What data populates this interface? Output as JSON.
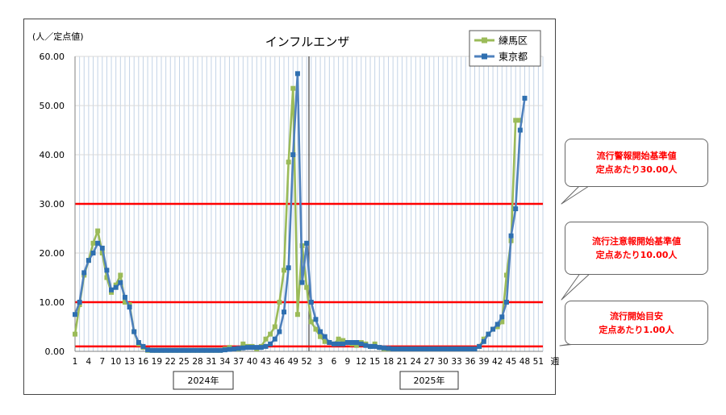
{
  "chart_data": {
    "type": "line",
    "title": "インフルエンザ",
    "ylabel": "(人／定点値)",
    "xlabel": "週",
    "ylim": [
      0,
      60
    ],
    "y_ticks": [
      "0.00",
      "10.00",
      "20.00",
      "30.00",
      "40.00",
      "50.00",
      "60.00"
    ],
    "x_tick_labels": [
      "1",
      "4",
      "7",
      "10",
      "13",
      "16",
      "19",
      "22",
      "25",
      "28",
      "31",
      "34",
      "37",
      "40",
      "43",
      "46",
      "49",
      "52",
      "3",
      "6",
      "9",
      "12",
      "15",
      "18",
      "21",
      "24",
      "27",
      "30",
      "33",
      "36",
      "39",
      "42",
      "45",
      "48",
      "51"
    ],
    "year_labels": [
      "2024年",
      "2025年"
    ],
    "legend_position": "top-right",
    "grid": true,
    "thresholds": [
      {
        "value": 30,
        "label_lines": [
          "流行警報開始基準値",
          "定点あたり30.00人"
        ]
      },
      {
        "value": 10,
        "label_lines": [
          "流行注意報開始基準値",
          "定点あたり10.00人"
        ]
      },
      {
        "value": 1,
        "label_lines": [
          "流行開始目安",
          "定点あたり1.00人"
        ]
      }
    ],
    "colors": {
      "nerima": "#9bbb59",
      "tokyo": "#4f81bd",
      "tokyo_marker": "#2e6fb0",
      "threshold": "#ff0000",
      "grid": "#c3d3e6",
      "separator": "#404040"
    },
    "series": [
      {
        "name": "練馬区",
        "values": [
          3.5,
          9.5,
          15.5,
          18.5,
          22,
          24.5,
          20,
          15,
          12,
          13.5,
          15.5,
          10,
          9.5,
          4,
          1.5,
          0.8,
          0.2,
          0.2,
          0.2,
          0.2,
          0.2,
          0.2,
          0.2,
          0.2,
          0.2,
          0.2,
          0.2,
          0.2,
          0.2,
          0.2,
          0.2,
          0.2,
          0.2,
          0.5,
          0.8,
          0.5,
          0.5,
          1.5,
          1.0,
          1.0,
          0.5,
          1.0,
          2.5,
          3.5,
          5,
          10,
          16.5,
          38.5,
          53.5,
          7.5,
          21.5,
          13,
          6,
          4.5,
          3,
          2,
          1.8,
          1.5,
          2.5,
          2.2,
          1.8,
          1.5,
          1.2,
          1.8,
          1.5,
          1.0,
          1.5,
          0.8,
          0.5,
          0.5,
          0.5,
          0.5,
          0.5,
          0.5,
          0.5,
          0.5,
          0.5,
          0.5,
          0.5,
          0.5,
          0.5,
          0.5,
          0.5,
          0.5,
          0.5,
          0.5,
          0.5,
          0.5,
          0.5,
          1.0,
          2.5,
          3.5,
          4.5,
          5,
          6,
          15.5,
          22.5,
          47,
          47
        ]
      },
      {
        "name": "東京都",
        "values": [
          7.5,
          10,
          16,
          18.5,
          20,
          22,
          21,
          16.5,
          12.5,
          13,
          14,
          11,
          9,
          4,
          1.8,
          1.0,
          0.3,
          0.2,
          0.2,
          0.2,
          0.2,
          0.2,
          0.2,
          0.2,
          0.2,
          0.2,
          0.2,
          0.2,
          0.2,
          0.2,
          0.2,
          0.2,
          0.2,
          0.3,
          0.4,
          0.5,
          0.6,
          0.7,
          0.8,
          0.8,
          0.8,
          0.8,
          1.0,
          1.5,
          2.5,
          4,
          8,
          17,
          40,
          56.5,
          14,
          22,
          10,
          6.5,
          4,
          3,
          1.8,
          1.5,
          1.5,
          1.5,
          1.8,
          1.8,
          1.8,
          1.5,
          1.2,
          1.0,
          1.0,
          0.8,
          0.7,
          0.6,
          0.5,
          0.5,
          0.5,
          0.5,
          0.5,
          0.5,
          0.5,
          0.5,
          0.5,
          0.5,
          0.5,
          0.5,
          0.5,
          0.5,
          0.5,
          0.5,
          0.5,
          0.5,
          0.5,
          1.0,
          2.0,
          3.5,
          4.5,
          5.5,
          7,
          10,
          23.5,
          29,
          45,
          51.5
        ]
      }
    ]
  }
}
